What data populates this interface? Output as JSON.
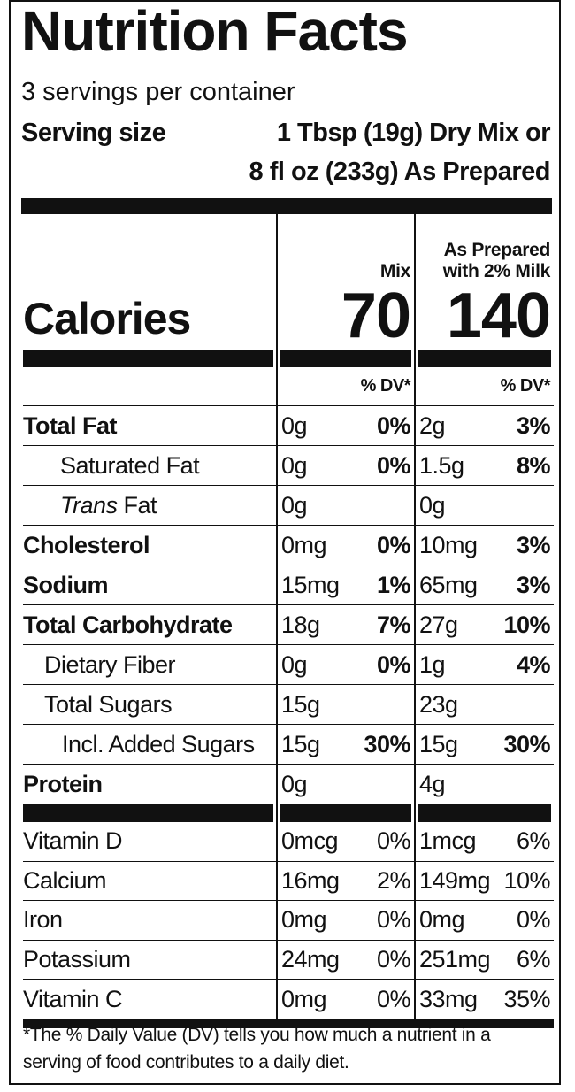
{
  "title": "Nutrition Facts",
  "servings": "3 servings per container",
  "serving_size": {
    "label": "Serving size",
    "value": [
      "1 Tbsp (19g) Dry Mix or",
      "8 fl oz (233g) As Prepared"
    ]
  },
  "columns": {
    "mix": "Mix",
    "prepared": [
      "As Prepared",
      "with 2% Milk"
    ]
  },
  "calories": {
    "label": "Calories",
    "mix": "70",
    "prepared": "140"
  },
  "dv_header": {
    "mix": "% DV*",
    "prepared": "% DV*"
  },
  "nutrients": [
    {
      "name": "Total Fat",
      "mix": [
        "0g",
        "0%"
      ],
      "prepared": [
        "2g",
        "3%"
      ]
    },
    {
      "name": "Saturated Fat",
      "mix": [
        "0g",
        "0%"
      ],
      "prepared": [
        "1.5g",
        "8%"
      ]
    },
    {
      "name": [
        "Trans",
        "Fat"
      ],
      "mix": [
        "0g"
      ],
      "prepared": [
        "0g"
      ]
    },
    {
      "name": "Cholesterol",
      "mix": [
        "0mg",
        "0%"
      ],
      "prepared": [
        "10mg",
        "3%"
      ]
    },
    {
      "name": "Sodium",
      "mix": [
        "15mg",
        "1%"
      ],
      "prepared": [
        "65mg",
        "3%"
      ]
    },
    {
      "name": "Total Carbohydrate",
      "mix": [
        "18g",
        "7%"
      ],
      "prepared": [
        "27g",
        "10%"
      ]
    },
    {
      "name": "Dietary Fiber",
      "mix": [
        "0g",
        "0%"
      ],
      "prepared": [
        "1g",
        "4%"
      ]
    },
    {
      "name": "Total Sugars",
      "mix": [
        "15g"
      ],
      "prepared": [
        "23g"
      ]
    },
    {
      "name": "Incl. Added Sugars",
      "mix": [
        "15g",
        "30%"
      ],
      "prepared": [
        "15g",
        "30%"
      ]
    },
    {
      "name": "Protein",
      "mix": [
        "0g"
      ],
      "prepared": [
        "4g"
      ]
    }
  ],
  "vitamins": [
    {
      "name": "Vitamin D",
      "mix": [
        "0mcg",
        "0%"
      ],
      "prepared": [
        "1mcg",
        "6%"
      ]
    },
    {
      "name": "Calcium",
      "mix": [
        "16mg",
        "2%"
      ],
      "prepared": [
        "149mg",
        "10%"
      ]
    },
    {
      "name": "Iron",
      "mix": [
        "0mg",
        "0%"
      ],
      "prepared": [
        "0mg",
        "0%"
      ]
    },
    {
      "name": "Potassium",
      "mix": [
        "24mg",
        "0%"
      ],
      "prepared": [
        "251mg",
        "6%"
      ]
    },
    {
      "name": "Vitamin C",
      "mix": [
        "0mg",
        "0%"
      ],
      "prepared": [
        "33mg",
        "35%"
      ]
    }
  ],
  "footnote": "*The % Daily Value (DV) tells you how much a nutrient in a serving of food contributes to a daily diet."
}
